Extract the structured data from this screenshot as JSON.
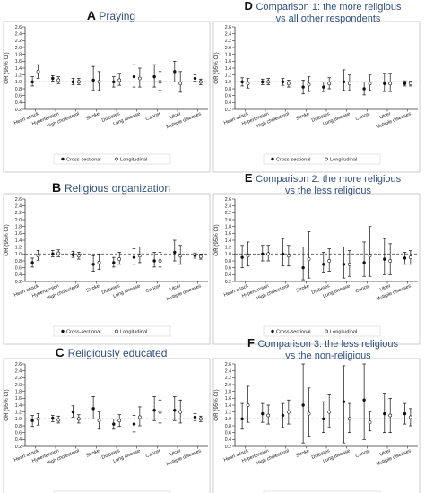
{
  "figure": {
    "colors": {
      "point": "#111111",
      "axis": "#333333",
      "frame": "#aaaaaa",
      "title": "#2f4f7f",
      "reference_line": "#555555"
    }
  },
  "chart_data": [
    {
      "type": "scatter",
      "subtype": "forest",
      "panel": "A",
      "title": "Praying",
      "ylabel": "OR (95% CI)",
      "ylim": [
        0.2,
        2.6
      ],
      "yticks": [
        0.2,
        0.4,
        0.6,
        0.8,
        1.0,
        1.2,
        1.4,
        1.6,
        1.8,
        2.0,
        2.2,
        2.4,
        2.6
      ],
      "reference_line": 1.0,
      "grid": false,
      "legend": "bottom",
      "categories": [
        "Heart attack",
        "Hypertension",
        "High cholesterol",
        "Stroke",
        "Diabetes",
        "Lung disease",
        "Cancer",
        "Ulcer",
        "Multiple diseases"
      ],
      "series": [
        {
          "name": "Cross-sectional",
          "marker": "filled",
          "points": [
            {
              "or": 1.0,
              "lo": 0.88,
              "hi": 1.15
            },
            {
              "or": 1.1,
              "lo": 1.02,
              "hi": 1.18
            },
            {
              "or": 1.0,
              "lo": 0.92,
              "hi": 1.1
            },
            {
              "or": 1.05,
              "lo": 0.75,
              "hi": 1.45
            },
            {
              "or": 1.0,
              "lo": 0.85,
              "hi": 1.15
            },
            {
              "or": 1.15,
              "lo": 0.85,
              "hi": 1.5
            },
            {
              "or": 1.15,
              "lo": 0.85,
              "hi": 1.5
            },
            {
              "or": 1.3,
              "lo": 1.0,
              "hi": 1.6
            },
            {
              "or": 1.1,
              "lo": 1.02,
              "hi": 1.2
            }
          ]
        },
        {
          "name": "Longitudinal",
          "marker": "open",
          "points": [
            {
              "or": 1.3,
              "lo": 1.1,
              "hi": 1.5
            },
            {
              "or": 1.05,
              "lo": 0.95,
              "hi": 1.15
            },
            {
              "or": 1.0,
              "lo": 0.92,
              "hi": 1.1
            },
            {
              "or": 1.0,
              "lo": 0.75,
              "hi": 1.3
            },
            {
              "or": 1.05,
              "lo": 0.9,
              "hi": 1.25
            },
            {
              "or": 1.1,
              "lo": 0.85,
              "hi": 1.4
            },
            {
              "or": 1.0,
              "lo": 0.75,
              "hi": 1.3
            },
            {
              "or": 0.95,
              "lo": 0.7,
              "hi": 1.3
            },
            {
              "or": 1.0,
              "lo": 0.92,
              "hi": 1.08
            }
          ]
        }
      ]
    },
    {
      "type": "scatter",
      "subtype": "forest",
      "panel": "B",
      "title": "Religious organization",
      "ylabel": "OR (95% CI)",
      "ylim": [
        0.2,
        2.6
      ],
      "yticks": [
        0.2,
        0.4,
        0.6,
        0.8,
        1.0,
        1.2,
        1.4,
        1.6,
        1.8,
        2.0,
        2.2,
        2.4,
        2.6
      ],
      "reference_line": 1.0,
      "grid": false,
      "legend": "bottom",
      "categories": [
        "Heart attack",
        "Hypertension",
        "High cholesterol",
        "Stroke",
        "Diabetes",
        "Lung disease",
        "Cancer",
        "Ulcer",
        "Multiple diseases"
      ],
      "series": [
        {
          "name": "Cross-sectional",
          "marker": "filled",
          "points": [
            {
              "or": 0.75,
              "lo": 0.62,
              "hi": 0.88
            },
            {
              "or": 1.0,
              "lo": 0.92,
              "hi": 1.1
            },
            {
              "or": 0.98,
              "lo": 0.9,
              "hi": 1.08
            },
            {
              "or": 0.7,
              "lo": 0.5,
              "hi": 0.95
            },
            {
              "or": 0.75,
              "lo": 0.62,
              "hi": 0.9
            },
            {
              "or": 0.9,
              "lo": 0.7,
              "hi": 1.15
            },
            {
              "or": 0.8,
              "lo": 0.62,
              "hi": 1.05
            },
            {
              "or": 1.05,
              "lo": 0.8,
              "hi": 1.4
            },
            {
              "or": 0.95,
              "lo": 0.88,
              "hi": 1.03
            }
          ]
        },
        {
          "name": "Longitudinal",
          "marker": "open",
          "points": [
            {
              "or": 0.95,
              "lo": 0.82,
              "hi": 1.1
            },
            {
              "or": 1.02,
              "lo": 0.92,
              "hi": 1.12
            },
            {
              "or": 0.95,
              "lo": 0.85,
              "hi": 1.05
            },
            {
              "or": 0.75,
              "lo": 0.55,
              "hi": 1.0
            },
            {
              "or": 0.85,
              "lo": 0.7,
              "hi": 1.05
            },
            {
              "or": 0.95,
              "lo": 0.75,
              "hi": 1.2
            },
            {
              "or": 0.8,
              "lo": 0.62,
              "hi": 1.05
            },
            {
              "or": 0.95,
              "lo": 0.7,
              "hi": 1.25
            },
            {
              "or": 0.92,
              "lo": 0.85,
              "hi": 1.0
            }
          ]
        }
      ]
    },
    {
      "type": "scatter",
      "subtype": "forest",
      "panel": "C",
      "title": "Religiously educated",
      "ylabel": "OR (95% CI)",
      "ylim": [
        0.2,
        2.6
      ],
      "yticks": [
        0.2,
        0.4,
        0.6,
        0.8,
        1.0,
        1.2,
        1.4,
        1.6,
        1.8,
        2.0,
        2.2,
        2.4,
        2.6
      ],
      "reference_line": 1.0,
      "grid": false,
      "legend": "bottom",
      "categories": [
        "Heart attack",
        "Hypertension",
        "High cholesterol",
        "Stroke",
        "Diabetes",
        "Lung disease",
        "Cancer",
        "Ulcer",
        "Multiple diseases"
      ],
      "series": [
        {
          "name": "Cross-sectional",
          "marker": "filled",
          "points": [
            {
              "or": 0.95,
              "lo": 0.78,
              "hi": 1.1
            },
            {
              "or": 1.02,
              "lo": 0.92,
              "hi": 1.1
            },
            {
              "or": 1.2,
              "lo": 1.05,
              "hi": 1.38
            },
            {
              "or": 1.3,
              "lo": 1.0,
              "hi": 1.65
            },
            {
              "or": 0.85,
              "lo": 0.7,
              "hi": 1.0
            },
            {
              "or": 0.85,
              "lo": 0.62,
              "hi": 1.1
            },
            {
              "or": 1.25,
              "lo": 0.95,
              "hi": 1.65
            },
            {
              "or": 1.25,
              "lo": 0.95,
              "hi": 1.65
            },
            {
              "or": 1.05,
              "lo": 0.95,
              "hi": 1.15
            }
          ]
        },
        {
          "name": "Longitudinal",
          "marker": "open",
          "points": [
            {
              "or": 1.0,
              "lo": 0.82,
              "hi": 1.15
            },
            {
              "or": 0.97,
              "lo": 0.88,
              "hi": 1.08
            },
            {
              "or": 1.0,
              "lo": 0.88,
              "hi": 1.12
            },
            {
              "or": 0.95,
              "lo": 0.7,
              "hi": 1.2
            },
            {
              "or": 0.95,
              "lo": 0.78,
              "hi": 1.12
            },
            {
              "or": 1.05,
              "lo": 0.8,
              "hi": 1.35
            },
            {
              "or": 1.2,
              "lo": 0.88,
              "hi": 1.55
            },
            {
              "or": 1.2,
              "lo": 0.88,
              "hi": 1.55
            },
            {
              "or": 1.0,
              "lo": 0.92,
              "hi": 1.08
            }
          ]
        }
      ]
    },
    {
      "type": "scatter",
      "subtype": "forest",
      "panel": "D",
      "title": "Comparison 1: the more religious vs all other respondents",
      "title_lines": [
        "Comparison 1: the more religious",
        "vs all other respondents"
      ],
      "ylabel": "OR (95% CI)",
      "ylim": [
        0.2,
        2.6
      ],
      "yticks": [
        0.2,
        0.4,
        0.6,
        0.8,
        1.0,
        1.2,
        1.4,
        1.6,
        1.8,
        2.0,
        2.2,
        2.4,
        2.6
      ],
      "reference_line": 1.0,
      "grid": false,
      "legend": "bottom",
      "categories": [
        "Heart attack",
        "Hypertension",
        "High cholesterol",
        "Stroke",
        "Diabetes",
        "Lung disease",
        "Cancer",
        "Ulcer",
        "Multiple diseases"
      ],
      "series": [
        {
          "name": "Cross-sectional",
          "marker": "filled",
          "points": [
            {
              "or": 1.0,
              "lo": 0.88,
              "hi": 1.12
            },
            {
              "or": 1.0,
              "lo": 0.92,
              "hi": 1.08
            },
            {
              "or": 1.0,
              "lo": 0.9,
              "hi": 1.1
            },
            {
              "or": 0.85,
              "lo": 0.65,
              "hi": 1.05
            },
            {
              "or": 0.85,
              "lo": 0.72,
              "hi": 1.0
            },
            {
              "or": 1.0,
              "lo": 0.75,
              "hi": 1.35
            },
            {
              "or": 0.8,
              "lo": 0.62,
              "hi": 1.0
            },
            {
              "or": 0.95,
              "lo": 0.72,
              "hi": 1.25
            },
            {
              "or": 0.95,
              "lo": 0.88,
              "hi": 1.03
            }
          ]
        },
        {
          "name": "Longitudinal",
          "marker": "open",
          "points": [
            {
              "or": 0.95,
              "lo": 0.82,
              "hi": 1.1
            },
            {
              "or": 1.0,
              "lo": 0.92,
              "hi": 1.1
            },
            {
              "or": 0.95,
              "lo": 0.85,
              "hi": 1.05
            },
            {
              "or": 0.92,
              "lo": 0.72,
              "hi": 1.15
            },
            {
              "or": 0.95,
              "lo": 0.8,
              "hi": 1.12
            },
            {
              "or": 0.95,
              "lo": 0.75,
              "hi": 1.2
            },
            {
              "or": 0.95,
              "lo": 0.75,
              "hi": 1.2
            },
            {
              "or": 0.95,
              "lo": 0.72,
              "hi": 1.25
            },
            {
              "or": 0.95,
              "lo": 0.88,
              "hi": 1.02
            }
          ]
        }
      ]
    },
    {
      "type": "scatter",
      "subtype": "forest",
      "panel": "E",
      "title": "Comparison 2: the more religious vs the less religious",
      "title_lines": [
        "Comparison 2: the more religious",
        "vs the less religious"
      ],
      "ylabel": "OR (95% CI)",
      "ylim": [
        0.2,
        2.6
      ],
      "yticks": [
        0.2,
        0.4,
        0.6,
        0.8,
        1.0,
        1.2,
        1.4,
        1.6,
        1.8,
        2.0,
        2.2,
        2.4,
        2.6
      ],
      "reference_line": 1.0,
      "grid": false,
      "legend": "bottom",
      "categories": [
        "Heart attack",
        "Hypertension",
        "High cholesterol",
        "Stroke",
        "Diabetes",
        "Lung disease",
        "Cancer",
        "Ulcer",
        "Multiple diseases"
      ],
      "series": [
        {
          "name": "Cross-sectional",
          "marker": "filled",
          "points": [
            {
              "or": 0.9,
              "lo": 0.6,
              "hi": 1.25
            },
            {
              "or": 1.0,
              "lo": 0.8,
              "hi": 1.25
            },
            {
              "or": 1.0,
              "lo": 0.65,
              "hi": 1.45
            },
            {
              "or": 0.6,
              "lo": 0.25,
              "hi": 1.2
            },
            {
              "or": 0.7,
              "lo": 0.45,
              "hi": 1.05
            },
            {
              "or": 0.7,
              "lo": 0.3,
              "hi": 1.2
            },
            {
              "or": 0.75,
              "lo": 0.35,
              "hi": 1.35
            },
            {
              "or": 0.85,
              "lo": 0.4,
              "hi": 1.45
            },
            {
              "or": 0.88,
              "lo": 0.7,
              "hi": 1.05
            }
          ]
        },
        {
          "name": "Longitudinal",
          "marker": "open",
          "points": [
            {
              "or": 0.95,
              "lo": 0.65,
              "hi": 1.35
            },
            {
              "or": 1.0,
              "lo": 0.8,
              "hi": 1.25
            },
            {
              "or": 0.95,
              "lo": 0.65,
              "hi": 1.25
            },
            {
              "or": 0.85,
              "lo": 0.3,
              "hi": 1.65
            },
            {
              "or": 0.8,
              "lo": 0.5,
              "hi": 1.15
            },
            {
              "or": 0.7,
              "lo": 0.35,
              "hi": 1.1
            },
            {
              "or": 0.95,
              "lo": 0.35,
              "hi": 1.8
            },
            {
              "or": 0.8,
              "lo": 0.4,
              "hi": 1.3
            },
            {
              "or": 0.9,
              "lo": 0.7,
              "hi": 1.1
            }
          ]
        }
      ]
    },
    {
      "type": "scatter",
      "subtype": "forest",
      "panel": "F",
      "title": "Comparison 3: the less religious vs the non-religious",
      "title_lines": [
        "Comparison 3: the less religious",
        "vs the non-religious"
      ],
      "ylabel": "OR (95% CI)",
      "ylim": [
        0.2,
        2.6
      ],
      "yticks": [
        0.2,
        0.4,
        0.6,
        0.8,
        1.0,
        1.2,
        1.4,
        1.6,
        1.8,
        2.0,
        2.2,
        2.4,
        2.6
      ],
      "reference_line": 1.0,
      "grid": false,
      "legend": "bottom",
      "categories": [
        "Heart attack",
        "Hypertension",
        "High cholesterol",
        "Stroke",
        "Diabetes",
        "Lung disease",
        "Cancer",
        "Ulcer",
        "Multiple diseases"
      ],
      "series": [
        {
          "name": "Cross-sectional",
          "marker": "filled",
          "points": [
            {
              "or": 1.0,
              "lo": 0.7,
              "hi": 1.45
            },
            {
              "or": 1.15,
              "lo": 0.9,
              "hi": 1.45
            },
            {
              "or": 1.1,
              "lo": 0.75,
              "hi": 1.45
            },
            {
              "or": 1.4,
              "lo": 0.3,
              "hi": 2.7
            },
            {
              "or": 1.0,
              "lo": 0.6,
              "hi": 1.5
            },
            {
              "or": 1.5,
              "lo": 0.3,
              "hi": 2.55
            },
            {
              "or": 1.55,
              "lo": 0.4,
              "hi": 2.65
            },
            {
              "or": 1.15,
              "lo": 0.6,
              "hi": 1.75
            },
            {
              "or": 1.15,
              "lo": 0.85,
              "hi": 1.45
            }
          ]
        },
        {
          "name": "Longitudinal",
          "marker": "open",
          "points": [
            {
              "or": 1.4,
              "lo": 0.9,
              "hi": 1.95
            },
            {
              "or": 1.1,
              "lo": 0.85,
              "hi": 1.4
            },
            {
              "or": 1.2,
              "lo": 0.85,
              "hi": 1.55
            },
            {
              "or": 1.15,
              "lo": 0.5,
              "hi": 1.9
            },
            {
              "or": 1.2,
              "lo": 0.75,
              "hi": 1.7
            },
            {
              "or": 1.0,
              "lo": 0.6,
              "hi": 1.45
            },
            {
              "or": 0.9,
              "lo": 0.65,
              "hi": 1.2
            },
            {
              "or": 1.1,
              "lo": 0.6,
              "hi": 1.6
            },
            {
              "or": 1.05,
              "lo": 0.8,
              "hi": 1.3
            }
          ]
        }
      ]
    }
  ]
}
